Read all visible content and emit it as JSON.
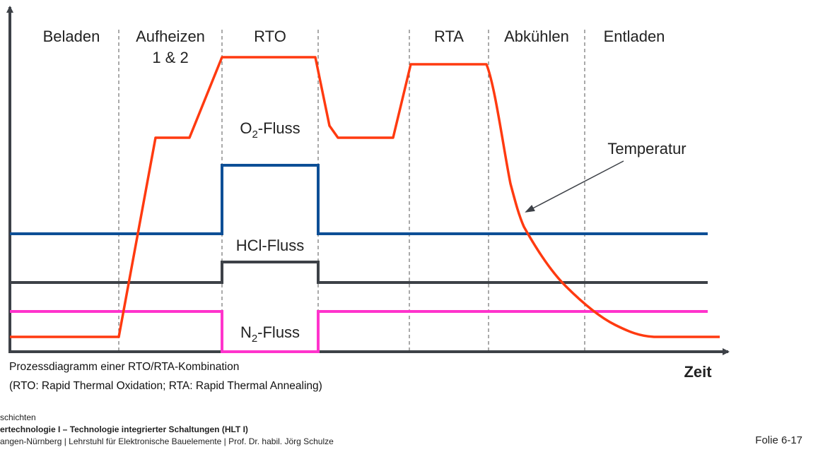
{
  "diagram": {
    "phases": [
      "Beladen",
      "Aufheizen",
      "1 & 2",
      "RTO",
      "RTA",
      "Abkühlen",
      "Entladen"
    ],
    "flows": {
      "o2_main": "O",
      "o2_sub": "2",
      "o2_suffix": "-Fluss",
      "hcl": "HCl-Fluss",
      "n2_main": "N",
      "n2_sub": "2",
      "n2_suffix": "-Fluss"
    },
    "temperature_label": "Temperatur",
    "x_axis_label": "Zeit",
    "colors": {
      "temperature": "#ff3a10",
      "o2": "#0d4f96",
      "hcl": "#3d4147",
      "n2": "#ff33cc",
      "axis": "#3d4147",
      "divider": "#555555"
    }
  },
  "caption": {
    "line1": "Prozessdiagramm einer RTO/RTA-Kombination",
    "line2": "(RTO: Rapid Thermal Oxidation; RTA: Rapid Thermal Annealing)"
  },
  "footer": {
    "line1": "schichten",
    "line2": "ertechnologie I – Technologie integrierter Schaltungen (HLT I)",
    "line3": "angen-Nürnberg | Lehrstuhl für Elektronische Bauelemente | Prof. Dr. habil. Jörg Schulze",
    "slide": "Folie 6-17"
  }
}
